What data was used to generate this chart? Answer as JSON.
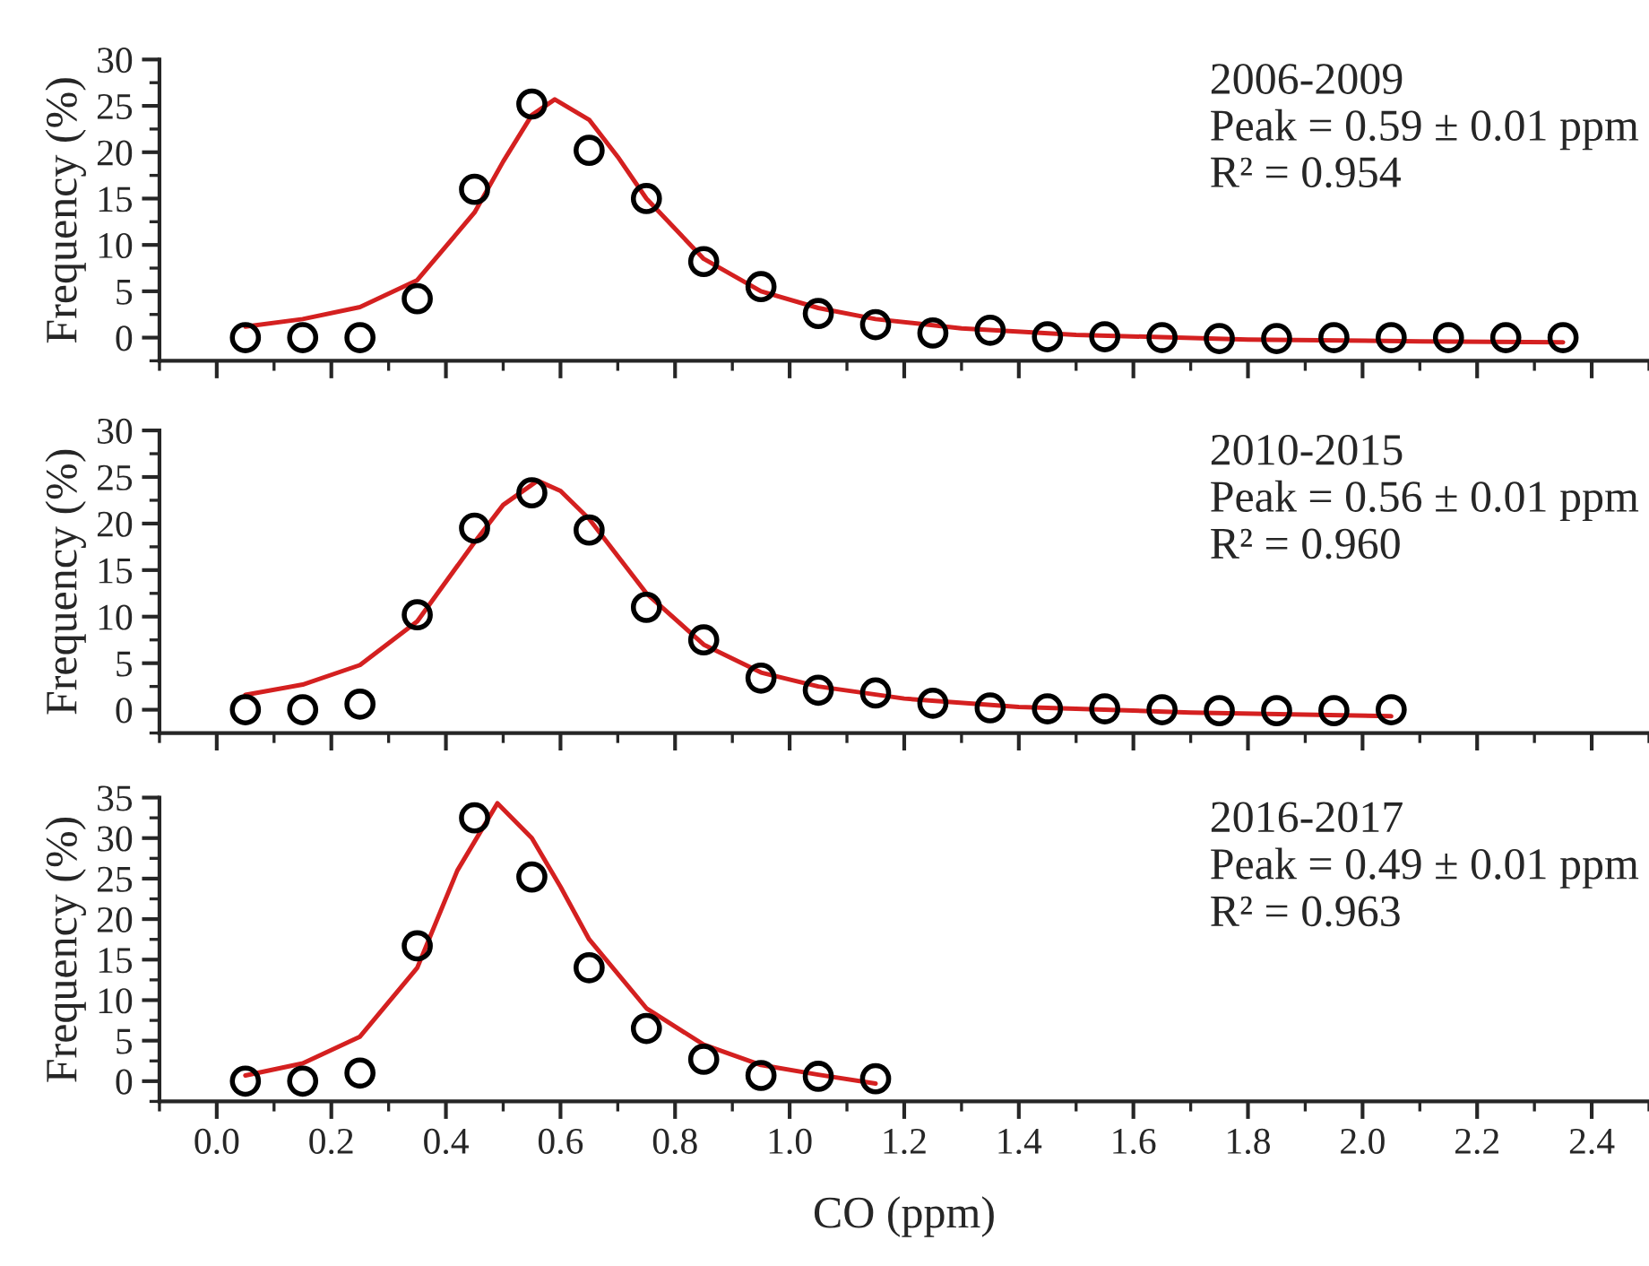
{
  "chart_data": [
    {
      "type": "scatter",
      "ylabel": "Frequency (%)",
      "xlim": [
        -0.1,
        2.5
      ],
      "ylim": [
        -2.5,
        30
      ],
      "yticks": [
        0,
        5,
        10,
        15,
        20,
        25,
        30
      ],
      "xticks": [
        0,
        0.2,
        0.4,
        0.6,
        0.8,
        1.0,
        1.2,
        1.4,
        1.6,
        1.8,
        2.0,
        2.2,
        2.4
      ],
      "tick_labels": "y",
      "grid": false,
      "legend": false,
      "annotations": [
        "2006-2009",
        "Peak = 0.59 ± 0.01 ppm",
        "R² = 0.954"
      ],
      "series": [
        {
          "marker": "circle",
          "color": "#000000",
          "x": [
            0.05,
            0.15,
            0.25,
            0.35,
            0.45,
            0.55,
            0.65,
            0.75,
            0.85,
            0.95,
            1.05,
            1.15,
            1.25,
            1.35,
            1.45,
            1.55,
            1.65,
            1.75,
            1.85,
            1.95,
            2.05,
            2.15,
            2.25,
            2.35
          ],
          "values": [
            0,
            0,
            0,
            4.2,
            16,
            25.2,
            20.2,
            15,
            8.2,
            5.5,
            2.6,
            1.4,
            0.5,
            0.8,
            0.1,
            0.1,
            0,
            -0.1,
            -0.1,
            0,
            0,
            0,
            0,
            0
          ]
        },
        {
          "type": "line",
          "marker": "none",
          "line_style": "solid",
          "color": "#d42020",
          "x": [
            0.05,
            0.15,
            0.25,
            0.35,
            0.45,
            0.5,
            0.55,
            0.59,
            0.65,
            0.7,
            0.75,
            0.85,
            0.95,
            1.05,
            1.15,
            1.3,
            1.5,
            1.8,
            2.1,
            2.35
          ],
          "values": [
            1.2,
            2.0,
            3.3,
            6.2,
            13.5,
            19,
            24,
            25.7,
            23.5,
            19.5,
            15,
            8.5,
            5.0,
            3.2,
            2.0,
            1.0,
            0.3,
            -0.2,
            -0.4,
            -0.5
          ]
        }
      ]
    },
    {
      "type": "scatter",
      "ylabel": "Frequency (%)",
      "xlim": [
        -0.1,
        2.5
      ],
      "ylim": [
        -2.5,
        30
      ],
      "yticks": [
        0,
        5,
        10,
        15,
        20,
        25,
        30
      ],
      "xticks": [
        0,
        0.2,
        0.4,
        0.6,
        0.8,
        1.0,
        1.2,
        1.4,
        1.6,
        1.8,
        2.0,
        2.2,
        2.4
      ],
      "tick_labels": "y",
      "grid": false,
      "legend": false,
      "annotations": [
        "2010-2015",
        "Peak = 0.56 ± 0.01 ppm",
        "R² = 0.960"
      ],
      "series": [
        {
          "marker": "circle",
          "color": "#000000",
          "x": [
            0.05,
            0.15,
            0.25,
            0.35,
            0.45,
            0.55,
            0.65,
            0.75,
            0.85,
            0.95,
            1.05,
            1.15,
            1.25,
            1.35,
            1.45,
            1.55,
            1.65,
            1.75,
            1.85,
            1.95,
            2.05
          ],
          "values": [
            0,
            0,
            0.6,
            10.2,
            19.5,
            23.3,
            19.3,
            11,
            7.5,
            3.4,
            2.1,
            1.8,
            0.7,
            0.2,
            0.1,
            0.1,
            0,
            -0.1,
            -0.1,
            -0.1,
            0
          ]
        },
        {
          "type": "line",
          "marker": "none",
          "line_style": "solid",
          "color": "#d42020",
          "x": [
            0.05,
            0.15,
            0.25,
            0.35,
            0.45,
            0.5,
            0.56,
            0.6,
            0.65,
            0.75,
            0.85,
            0.95,
            1.05,
            1.2,
            1.4,
            1.7,
            2.05
          ],
          "values": [
            1.6,
            2.7,
            4.8,
            9.5,
            18,
            22,
            24.6,
            23.5,
            20.5,
            12.5,
            7.0,
            4.0,
            2.5,
            1.2,
            0.3,
            -0.3,
            -0.7
          ]
        }
      ]
    },
    {
      "type": "scatter",
      "ylabel": "Frequency (%)",
      "xlabel": "CO (ppm)",
      "xlim": [
        -0.1,
        2.5
      ],
      "ylim": [
        -2.5,
        35
      ],
      "yticks": [
        0,
        5,
        10,
        15,
        20,
        25,
        30,
        35
      ],
      "xticks": [
        {
          "value": 0,
          "label": "0.0"
        },
        {
          "value": 0.2,
          "label": "0.2"
        },
        {
          "value": 0.4,
          "label": "0.4"
        },
        {
          "value": 0.6,
          "label": "0.6"
        },
        {
          "value": 0.8,
          "label": "0.8"
        },
        {
          "value": 1.0,
          "label": "1.0"
        },
        {
          "value": 1.2,
          "label": "1.2"
        },
        {
          "value": 1.4,
          "label": "1.4"
        },
        {
          "value": 1.6,
          "label": "1.6"
        },
        {
          "value": 1.8,
          "label": "1.8"
        },
        {
          "value": 2.0,
          "label": "2.0"
        },
        {
          "value": 2.2,
          "label": "2.2"
        },
        {
          "value": 2.4,
          "label": "2.4"
        }
      ],
      "grid": false,
      "legend": false,
      "annotations": [
        "2016-2017",
        "Peak = 0.49 ± 0.01 ppm",
        "R² = 0.963"
      ],
      "series": [
        {
          "marker": "circle",
          "color": "#000000",
          "x": [
            0.05,
            0.15,
            0.25,
            0.35,
            0.45,
            0.55,
            0.65,
            0.75,
            0.85,
            0.95,
            1.05,
            1.15
          ],
          "values": [
            0,
            0,
            1,
            16.7,
            32.5,
            25.2,
            14,
            6.5,
            2.7,
            0.7,
            0.6,
            0.3
          ]
        },
        {
          "type": "line",
          "marker": "none",
          "line_style": "solid",
          "color": "#d42020",
          "x": [
            0.05,
            0.15,
            0.25,
            0.35,
            0.42,
            0.49,
            0.55,
            0.6,
            0.65,
            0.75,
            0.85,
            0.95,
            1.05,
            1.15
          ],
          "values": [
            0.7,
            2.2,
            5.5,
            14,
            26,
            34.3,
            30,
            24,
            17.5,
            9,
            4.5,
            2,
            0.8,
            -0.3
          ]
        }
      ]
    }
  ]
}
